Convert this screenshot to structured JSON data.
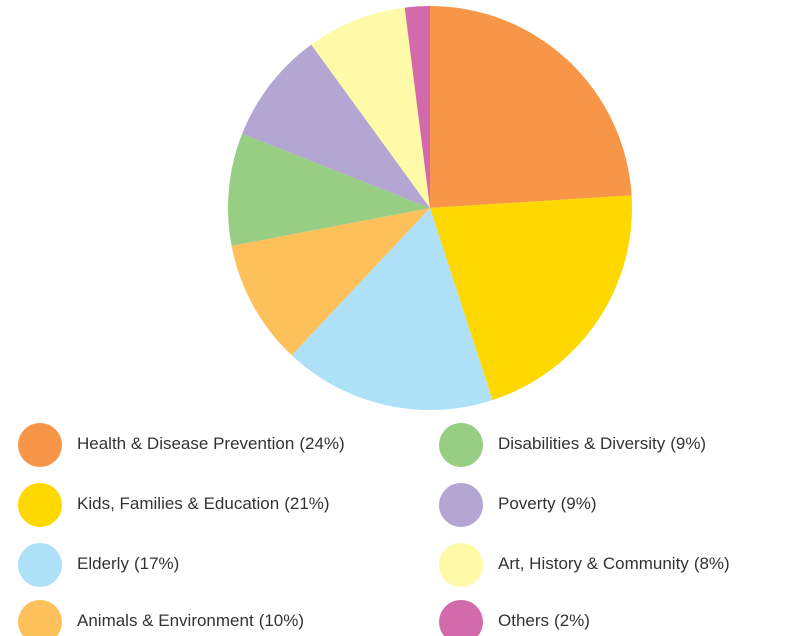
{
  "chart_data": {
    "type": "pie",
    "categories": [
      "Health & Disease Prevention",
      "Kids, Families & Education",
      "Elderly",
      "Animals & Environment",
      "Disabilities & Diversity",
      "Poverty",
      "Art, History & Community",
      "Others"
    ],
    "values": [
      24,
      21,
      17,
      10,
      9,
      9,
      8,
      2
    ],
    "value_labels": [
      "(24%)",
      "(21%)",
      "(17%)",
      "(10%)",
      "(9%)",
      "(9%)",
      "(8%)",
      "(2%)"
    ],
    "colors": [
      "#f79646",
      "#fed800",
      "#aee0f8",
      "#fec05a",
      "#98cd84",
      "#b3a6d2",
      "#fffaa8",
      "#d36aab"
    ]
  }
}
